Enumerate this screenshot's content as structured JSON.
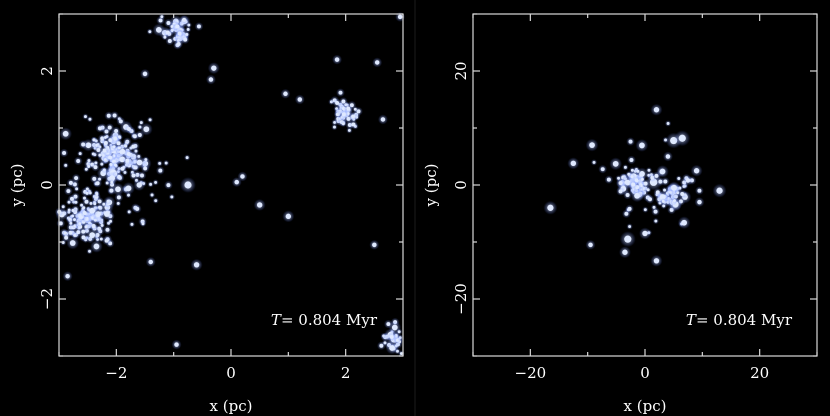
{
  "colors": {
    "background": "#000000",
    "axes": "#d8d8d8",
    "text": "#ffffff",
    "stars": "#dfe9ff",
    "glow": "#6f8fff"
  },
  "chart_data": [
    {
      "type": "scatter",
      "xlabel": "x (pc)",
      "ylabel": "y (pc)",
      "xlim": [
        -3,
        3
      ],
      "ylim": [
        -3,
        3
      ],
      "x_ticks": [
        -2,
        0,
        2
      ],
      "y_ticks": [
        -2,
        0,
        2
      ],
      "x_tick_labels": [
        "−2",
        "0",
        "2"
      ],
      "y_tick_labels": [
        "−2",
        "0",
        "2"
      ],
      "annotation": {
        "symbol": "T",
        "text": "= 0.804  Myr"
      },
      "grid": false,
      "clusters": [
        {
          "x": -2.5,
          "y": -0.6,
          "n": 150,
          "spread": 0.22
        },
        {
          "x": -2.0,
          "y": 0.5,
          "n": 150,
          "spread": 0.24
        },
        {
          "x": -2.05,
          "y": 0.2,
          "n": 70,
          "spread": 0.6
        },
        {
          "x": -0.95,
          "y": 2.75,
          "n": 50,
          "spread": 0.14
        },
        {
          "x": 2.0,
          "y": 1.25,
          "n": 45,
          "spread": 0.14
        },
        {
          "x": 2.85,
          "y": -2.7,
          "n": 30,
          "spread": 0.12
        }
      ],
      "points": [
        {
          "x": -0.75,
          "y": 0.0,
          "m": 3
        },
        {
          "x": -1.6,
          "y": 0.0,
          "m": 2
        },
        {
          "x": 0.2,
          "y": 0.15,
          "m": 1.5
        },
        {
          "x": 0.1,
          "y": 0.05,
          "m": 1.5
        },
        {
          "x": 0.5,
          "y": -0.35,
          "m": 2
        },
        {
          "x": 1.0,
          "y": -0.55,
          "m": 2
        },
        {
          "x": -0.6,
          "y": -1.4,
          "m": 2
        },
        {
          "x": -1.4,
          "y": -1.35,
          "m": 1.5
        },
        {
          "x": -2.85,
          "y": -1.6,
          "m": 1.5
        },
        {
          "x": -0.35,
          "y": 1.85,
          "m": 1.5
        },
        {
          "x": -0.3,
          "y": 2.05,
          "m": 2
        },
        {
          "x": 0.95,
          "y": 1.6,
          "m": 1.5
        },
        {
          "x": 1.2,
          "y": 1.5,
          "m": 1.5
        },
        {
          "x": 1.85,
          "y": 2.2,
          "m": 1.5
        },
        {
          "x": 2.55,
          "y": 2.15,
          "m": 1.5
        },
        {
          "x": 2.65,
          "y": 1.15,
          "m": 1.5
        },
        {
          "x": 2.5,
          "y": -1.05,
          "m": 1.5
        },
        {
          "x": -1.5,
          "y": 1.95,
          "m": 1.5
        },
        {
          "x": -0.95,
          "y": -2.8,
          "m": 1.5
        },
        {
          "x": 2.95,
          "y": 2.95,
          "m": 1.5
        }
      ]
    },
    {
      "type": "scatter",
      "xlabel": "x (pc)",
      "ylabel": "y (pc)",
      "xlim": [
        -30,
        30
      ],
      "ylim": [
        -30,
        30
      ],
      "x_ticks": [
        -20,
        0,
        20
      ],
      "y_ticks": [
        -20,
        0,
        20
      ],
      "x_tick_labels": [
        "−20",
        "0",
        "20"
      ],
      "y_tick_labels": [
        "−20",
        "0",
        "20"
      ],
      "annotation": {
        "symbol": "T",
        "text": "= 0.804  Myr"
      },
      "grid": false,
      "clusters": [
        {
          "x": -2.0,
          "y": 0.5,
          "n": 50,
          "spread": 1.4
        },
        {
          "x": 1.5,
          "y": 0.5,
          "n": 45,
          "spread": 4.5
        },
        {
          "x": 3.5,
          "y": -2.5,
          "n": 30,
          "spread": 1.2
        },
        {
          "x": 5.0,
          "y": -1.0,
          "n": 20,
          "spread": 1.0
        }
      ],
      "points": [
        {
          "x": -16.5,
          "y": -4.0,
          "m": 2.5
        },
        {
          "x": -12.5,
          "y": 3.8,
          "m": 2
        },
        {
          "x": -9.5,
          "y": -10.5,
          "m": 1.5
        },
        {
          "x": -3.0,
          "y": -9.5,
          "m": 3
        },
        {
          "x": -3.5,
          "y": -11.8,
          "m": 2
        },
        {
          "x": 0.0,
          "y": -8.5,
          "m": 2
        },
        {
          "x": 2.0,
          "y": 13.2,
          "m": 2
        },
        {
          "x": 5.0,
          "y": 7.8,
          "m": 3
        },
        {
          "x": 6.5,
          "y": 8.2,
          "m": 3
        },
        {
          "x": 9.0,
          "y": 2.5,
          "m": 2
        },
        {
          "x": 9.5,
          "y": -3.0,
          "m": 1.5
        },
        {
          "x": 13.0,
          "y": -1.0,
          "m": 2.5
        },
        {
          "x": 2.0,
          "y": -13.3,
          "m": 2
        },
        {
          "x": 7.5,
          "y": 0.8,
          "m": 1.5
        },
        {
          "x": 4.0,
          "y": 5.0,
          "m": 1.5
        }
      ]
    }
  ]
}
